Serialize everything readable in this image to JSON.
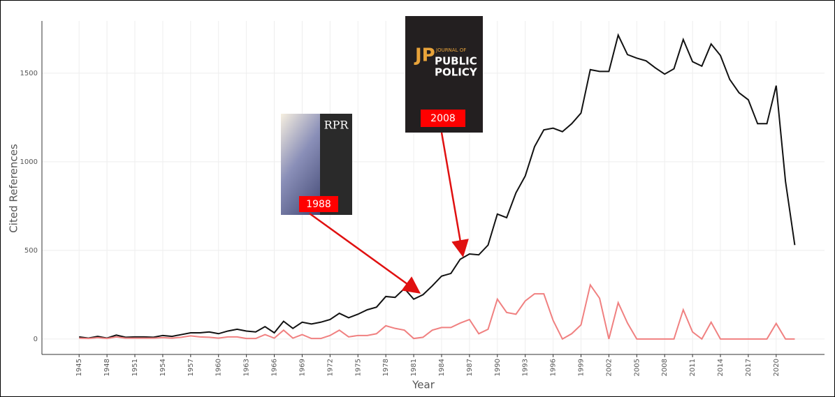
{
  "chart_data": {
    "type": "line",
    "x_label": "Year",
    "y_label": "Cited References",
    "x": [
      1945,
      1946,
      1947,
      1948,
      1949,
      1950,
      1951,
      1952,
      1953,
      1954,
      1955,
      1956,
      1957,
      1958,
      1959,
      1960,
      1961,
      1962,
      1963,
      1964,
      1965,
      1966,
      1967,
      1968,
      1969,
      1970,
      1971,
      1972,
      1973,
      1974,
      1975,
      1976,
      1977,
      1978,
      1979,
      1980,
      1981,
      1982,
      1983,
      1984,
      1985,
      1986,
      1987,
      1988,
      1989,
      1990,
      1991,
      1992,
      1993,
      1994,
      1995,
      1996,
      1997,
      1998,
      1999,
      2000,
      2001,
      2002,
      2003,
      2004,
      2005,
      2006,
      2007,
      2008,
      2009,
      2010,
      2011,
      2012,
      2013,
      2014,
      2015,
      2016,
      2017,
      2018,
      2019,
      2020,
      2021,
      2022
    ],
    "series": [
      {
        "color": "#111111",
        "values": [
          12,
          5,
          15,
          5,
          22,
          10,
          12,
          12,
          10,
          20,
          15,
          25,
          35,
          35,
          40,
          30,
          45,
          55,
          45,
          40,
          70,
          35,
          100,
          60,
          95,
          85,
          95,
          110,
          145,
          120,
          140,
          165,
          180,
          240,
          235,
          285,
          225,
          250,
          300,
          355,
          370,
          450,
          480,
          475,
          530,
          705,
          685,
          825,
          920,
          1085,
          1180,
          1190,
          1170,
          1215,
          1275,
          1520,
          1510,
          1510,
          1715,
          1605,
          1585,
          1570,
          1530,
          1495,
          1525,
          1690,
          1565,
          1540,
          1665,
          1600,
          1465,
          1390,
          1350,
          1215,
          1215,
          1430,
          890,
          530
        ]
      },
      {
        "color": "#f08080",
        "values": [
          5,
          3,
          8,
          3,
          12,
          5,
          5,
          5,
          5,
          8,
          5,
          10,
          18,
          12,
          10,
          5,
          12,
          12,
          3,
          3,
          25,
          5,
          50,
          5,
          25,
          3,
          3,
          20,
          50,
          12,
          20,
          20,
          30,
          75,
          60,
          50,
          3,
          10,
          50,
          65,
          65,
          90,
          110,
          30,
          55,
          225,
          150,
          140,
          215,
          255,
          255,
          105,
          0,
          30,
          80,
          305,
          230,
          0,
          205,
          90,
          0,
          0,
          0,
          0,
          0,
          165,
          40,
          0,
          95,
          0,
          0,
          0,
          0,
          0,
          0,
          88,
          0,
          0
        ]
      }
    ],
    "xlim": [
      1941,
      2025.2
    ],
    "xticks": [
      1945,
      1948,
      1951,
      1954,
      1957,
      1960,
      1963,
      1966,
      1969,
      1972,
      1975,
      1978,
      1981,
      1984,
      1987,
      1990,
      1993,
      1996,
      1999,
      2002,
      2005,
      2008,
      2011,
      2014,
      2017,
      2020
    ],
    "ylim": [
      -87,
      1795
    ],
    "yticks": [
      0,
      500,
      1000,
      1500
    ],
    "grid": true,
    "annotations": [
      {
        "label": "1988",
        "cover_title": "RPR"
      },
      {
        "label": "2008",
        "cover_logo": "JP",
        "cover_lines": [
          "JOURNAL OF",
          "PUBLIC",
          "POLICY"
        ]
      }
    ]
  }
}
